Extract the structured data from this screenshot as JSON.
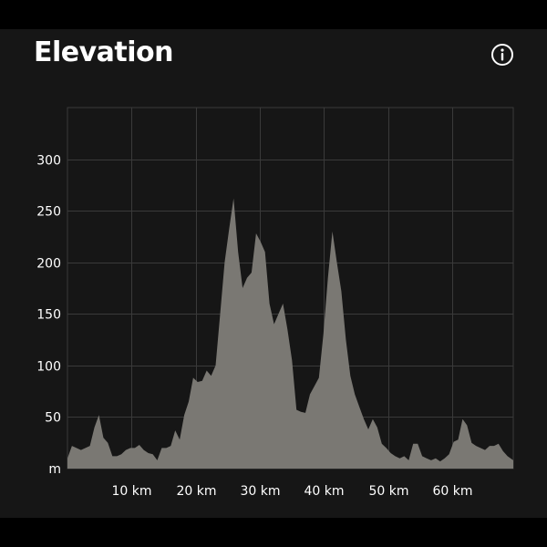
{
  "header": {
    "title": "Elevation",
    "info_icon": "info-icon"
  },
  "colors": {
    "background": "#161616",
    "area_fill": "#7a7873",
    "grid": "#3a3a3a",
    "text": "#ffffff"
  },
  "chart_data": {
    "type": "area",
    "title": "Elevation",
    "xlabel": "",
    "ylabel": "",
    "y_unit_label": "m",
    "xlim": [
      0,
      69.5
    ],
    "ylim": [
      0,
      350
    ],
    "grid": true,
    "x_ticks": [
      {
        "value": 10,
        "label": "10 km"
      },
      {
        "value": 20,
        "label": "20 km"
      },
      {
        "value": 30,
        "label": "30 km"
      },
      {
        "value": 40,
        "label": "40 km"
      },
      {
        "value": 50,
        "label": "50 km"
      },
      {
        "value": 60,
        "label": "60 km"
      }
    ],
    "y_ticks": [
      {
        "value": 50,
        "label": "50"
      },
      {
        "value": 100,
        "label": "100"
      },
      {
        "value": 150,
        "label": "150"
      },
      {
        "value": 200,
        "label": "200"
      },
      {
        "value": 250,
        "label": "250"
      },
      {
        "value": 300,
        "label": "300"
      }
    ],
    "series": [
      {
        "x": [
          0,
          0.7,
          1.4,
          2.1,
          2.8,
          3.5,
          4.2,
          4.9,
          5.6,
          6.3,
          7.0,
          7.7,
          8.4,
          9.1,
          9.8,
          10.5,
          11.2,
          11.9,
          12.6,
          13.3,
          14.0,
          14.7,
          15.4,
          16.1,
          16.8,
          17.5,
          18.2,
          18.9,
          19.6,
          20.3,
          21.0,
          21.7,
          22.4,
          23.1,
          23.8,
          24.5,
          25.2,
          25.9,
          26.6,
          27.3,
          28.0,
          28.7,
          29.4,
          30.1,
          30.8,
          31.5,
          32.2,
          32.9,
          33.6,
          34.3,
          35.0,
          35.7,
          36.4,
          37.1,
          37.8,
          38.5,
          39.2,
          39.9,
          40.6,
          41.3,
          42.0,
          42.7,
          43.4,
          44.1,
          44.8,
          45.5,
          46.2,
          46.9,
          47.6,
          48.3,
          49.0,
          49.7,
          50.4,
          51.1,
          51.8,
          52.5,
          53.2,
          53.9,
          54.6,
          55.3,
          56.0,
          56.7,
          57.4,
          58.1,
          58.8,
          59.5,
          60.2,
          60.9,
          61.6,
          62.3,
          63.0,
          63.7,
          64.4,
          65.1,
          65.8,
          66.5,
          67.2,
          67.9,
          68.6,
          69.5
        ],
        "y": [
          10,
          22,
          20,
          18,
          20,
          22,
          40,
          52,
          30,
          25,
          12,
          12,
          14,
          18,
          20,
          20,
          23,
          18,
          15,
          14,
          8,
          20,
          20,
          22,
          37,
          28,
          52,
          65,
          88,
          84,
          85,
          95,
          90,
          100,
          150,
          200,
          232,
          262,
          210,
          175,
          185,
          190,
          228,
          220,
          210,
          160,
          140,
          150,
          160,
          135,
          105,
          57,
          55,
          54,
          72,
          80,
          88,
          130,
          185,
          230,
          200,
          172,
          125,
          90,
          72,
          60,
          48,
          38,
          48,
          40,
          24,
          20,
          15,
          12,
          10,
          12,
          8,
          24,
          24,
          12,
          10,
          8,
          10,
          7,
          10,
          14,
          26,
          28,
          48,
          42,
          25,
          22,
          20,
          18,
          22,
          22,
          24,
          17,
          12,
          8
        ]
      }
    ]
  }
}
